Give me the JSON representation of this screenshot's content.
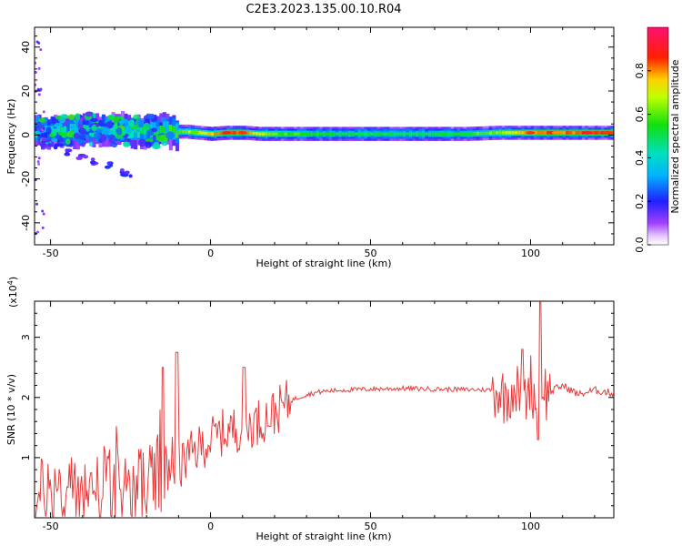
{
  "title": "C2E3.2023.135.00.10.R04",
  "chart_data": [
    {
      "type": "heatmap",
      "xlabel": "Height of straight line (km)",
      "ylabel": "Frequency (Hz)",
      "xlim": [
        -55,
        126
      ],
      "ylim": [
        -50,
        49
      ],
      "xticks": [
        -50,
        0,
        50,
        100
      ],
      "yticks": [
        -40,
        -20,
        0,
        20,
        40
      ],
      "colorbar": {
        "label": "Normalized spectral amplitude",
        "range": [
          0,
          1
        ],
        "ticks": [
          "0.0",
          "0.2",
          "0.4",
          "0.6",
          "0.8"
        ],
        "colormap": "rainbow (purple-blue-cyan-green-yellow-red-magenta)"
      },
      "ridge": [
        [
          -52,
          1.5,
          0.35
        ],
        [
          -48,
          2.0,
          0.45
        ],
        [
          -44,
          1.5,
          0.4
        ],
        [
          -40,
          2.5,
          0.4
        ],
        [
          -36,
          3.0,
          0.45
        ],
        [
          -32,
          2.5,
          0.4
        ],
        [
          -28,
          2.0,
          0.45
        ],
        [
          -24,
          1.5,
          0.45
        ],
        [
          -20,
          1.5,
          0.5
        ],
        [
          -16,
          1.5,
          0.55
        ],
        [
          -12,
          1.5,
          0.6
        ],
        [
          -8,
          1.5,
          0.65
        ],
        [
          -4,
          1.0,
          0.7
        ],
        [
          0,
          0.5,
          0.75
        ],
        [
          5,
          1.0,
          0.85
        ],
        [
          10,
          1.0,
          0.8
        ],
        [
          15,
          0.5,
          0.7
        ],
        [
          20,
          0.5,
          0.6
        ],
        [
          30,
          0.5,
          0.55
        ],
        [
          40,
          0.5,
          0.5
        ],
        [
          50,
          0.5,
          0.5
        ],
        [
          60,
          0.5,
          0.5
        ],
        [
          70,
          0.5,
          0.5
        ],
        [
          80,
          0.5,
          0.55
        ],
        [
          90,
          1.0,
          0.65
        ],
        [
          95,
          1.0,
          0.75
        ],
        [
          100,
          1.0,
          0.8
        ],
        [
          105,
          1.0,
          0.85
        ],
        [
          110,
          1.0,
          0.8
        ],
        [
          115,
          1.0,
          0.85
        ],
        [
          120,
          1.0,
          0.85
        ],
        [
          126,
          1.0,
          0.8
        ]
      ],
      "scatter_band": [
        [
          -52,
          -3
        ],
        [
          -48,
          -5
        ],
        [
          -44,
          -8
        ],
        [
          -40,
          -10
        ],
        [
          -36,
          -12
        ],
        [
          -32,
          -14
        ],
        [
          -28,
          -17
        ],
        [
          -26,
          -18
        ]
      ]
    },
    {
      "type": "line",
      "xlabel": "Height of straight line (km)",
      "ylabel": "SNR (10 * v/v)",
      "yscale_note": "(x10",
      "yscale_exp": "4",
      "yscale_close": ")",
      "xlim": [
        -55,
        126
      ],
      "ylim": [
        0,
        3.6
      ],
      "xticks": [
        -50,
        0,
        50,
        100
      ],
      "yticks": [
        1,
        2,
        3
      ],
      "series": [
        {
          "color": "#e83a3a",
          "x": [
            -55,
            -52,
            -50,
            -45,
            -40,
            -35,
            -30,
            -25,
            -20,
            -15,
            -10,
            -5,
            0,
            5,
            10,
            15,
            20,
            25,
            30,
            35,
            40,
            50,
            60,
            70,
            80,
            85,
            90,
            92,
            95,
            98,
            100,
            102,
            103,
            105,
            108,
            110,
            115,
            120,
            126
          ],
          "y": [
            0.1,
            0.4,
            0.5,
            0.4,
            0.45,
            0.5,
            0.5,
            0.5,
            0.6,
            0.7,
            0.85,
            1.1,
            1.3,
            1.45,
            1.5,
            1.6,
            1.75,
            1.95,
            2.05,
            2.1,
            2.12,
            2.14,
            2.15,
            2.14,
            2.13,
            2.13,
            2.12,
            2.0,
            2.2,
            1.9,
            2.3,
            1.8,
            2.4,
            2.05,
            2.15,
            2.2,
            2.05,
            2.12,
            2.07
          ]
        }
      ]
    }
  ]
}
